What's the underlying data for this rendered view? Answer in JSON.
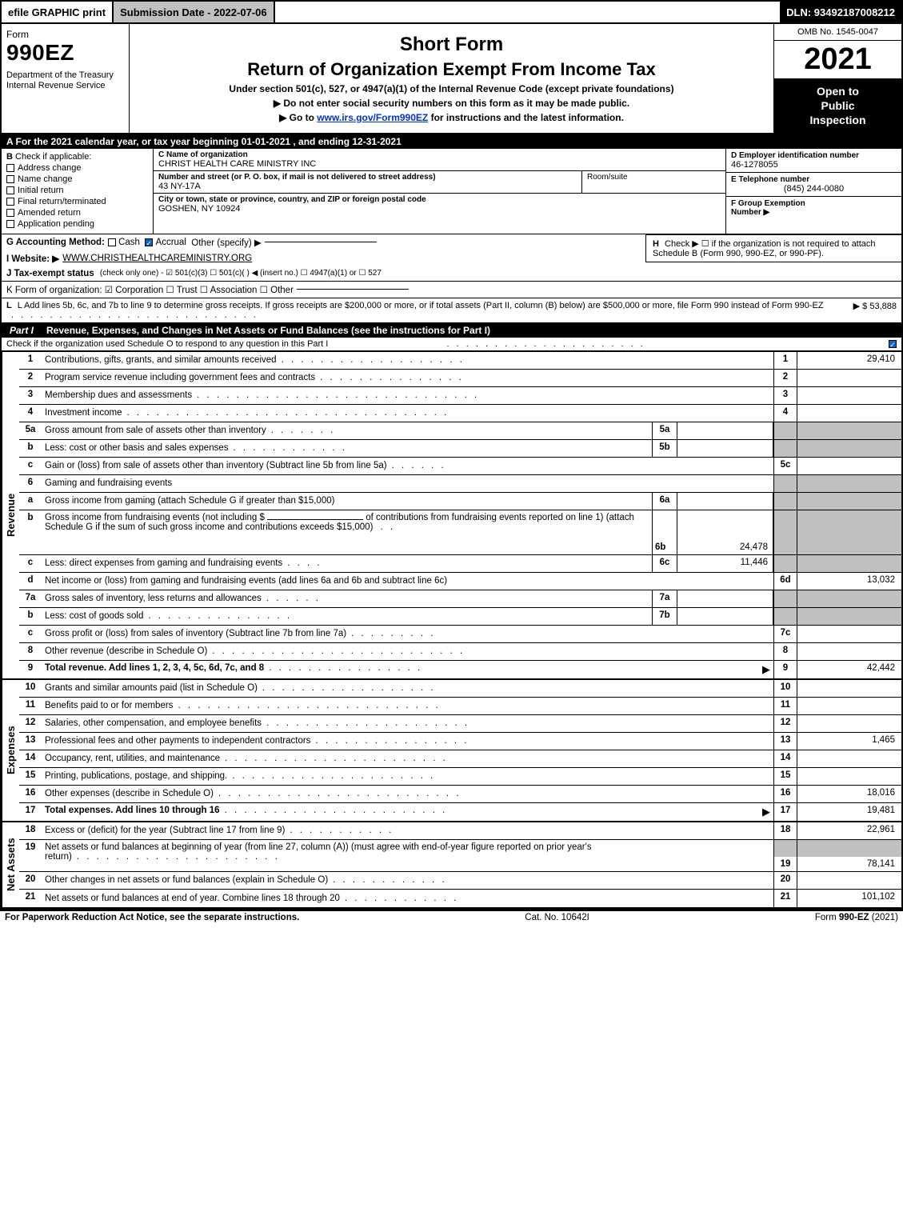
{
  "topbar": {
    "efile": "efile GRAPHIC print",
    "submission": "Submission Date - 2022-07-06",
    "dln": "DLN: 93492187008212"
  },
  "header": {
    "form_word": "Form",
    "form_number": "990EZ",
    "department": "Department of the Treasury\nInternal Revenue Service",
    "short_form": "Short Form",
    "return_title": "Return of Organization Exempt From Income Tax",
    "under_section": "Under section 501(c), 527, or 4947(a)(1) of the Internal Revenue Code (except private foundations)",
    "do_not_enter": "▶ Do not enter social security numbers on this form as it may be made public.",
    "go_to_prefix": "▶ Go to ",
    "go_to_link": "www.irs.gov/Form990EZ",
    "go_to_suffix": " for instructions and the latest information.",
    "omb": "OMB No. 1545-0047",
    "year": "2021",
    "inspection": "Open to\nPublic\nInspection"
  },
  "line_a": "A  For the 2021 calendar year, or tax year beginning 01-01-2021 , and ending 12-31-2021",
  "section_b": {
    "label": "B",
    "check_if": "Check if applicable:",
    "options": [
      "Address change",
      "Name change",
      "Initial return",
      "Final return/terminated",
      "Amended return",
      "Application pending"
    ]
  },
  "section_c": {
    "name_label": "C Name of organization",
    "name_value": "CHRIST HEALTH CARE MINISTRY INC",
    "street_label": "Number and street (or P. O. box, if mail is not delivered to street address)",
    "street_value": "43 NY-17A",
    "room_label": "Room/suite",
    "city_label": "City or town, state or province, country, and ZIP or foreign postal code",
    "city_value": "GOSHEN, NY  10924"
  },
  "section_d": {
    "label": "D Employer identification number",
    "value": "46-1278055"
  },
  "section_e": {
    "label": "E Telephone number",
    "value": "(845) 244-0080"
  },
  "section_f": {
    "label": "F Group Exemption\nNumber  ▶"
  },
  "line_g": {
    "label": "G Accounting Method:",
    "cash": "Cash",
    "accrual": "Accrual",
    "other": "Other (specify) ▶"
  },
  "line_h": {
    "label": "H",
    "text": "Check ▶ ☐ if the organization is not required to attach Schedule B (Form 990, 990-EZ, or 990-PF)."
  },
  "line_i": {
    "label": "I Website: ▶",
    "value": "WWW.CHRISTHEALTHCAREMINISTRY.ORG"
  },
  "line_j": {
    "label": "J Tax-exempt status",
    "text": "(check only one) - ☑ 501(c)(3) ☐ 501(c)( ) ◀ (insert no.) ☐ 4947(a)(1) or ☐ 527"
  },
  "line_k_label": "K Form of organization:   ☑ Corporation  ☐ Trust  ☐ Association  ☐ Other",
  "line_l": {
    "text": "L Add lines 5b, 6c, and 7b to line 9 to determine gross receipts. If gross receipts are $200,000 or more, or if total assets (Part II, column (B) below) are $500,000 or more, file Form 990 instead of Form 990-EZ",
    "amount": "▶ $ 53,888"
  },
  "part1": {
    "label": "Part I",
    "title": "Revenue, Expenses, and Changes in Net Assets or Fund Balances (see the instructions for Part I)",
    "sub": "Check if the organization used Schedule O to respond to any question in this Part I"
  },
  "side_tabs": {
    "revenue": "Revenue",
    "expenses": "Expenses",
    "net_assets": "Net Assets"
  },
  "rows": {
    "r1": {
      "num": "1",
      "desc": "Contributions, gifts, grants, and similar amounts received",
      "right_num": "1",
      "right_val": "29,410"
    },
    "r2": {
      "num": "2",
      "desc": "Program service revenue including government fees and contracts",
      "right_num": "2",
      "right_val": ""
    },
    "r3": {
      "num": "3",
      "desc": "Membership dues and assessments",
      "right_num": "3",
      "right_val": ""
    },
    "r4": {
      "num": "4",
      "desc": "Investment income",
      "right_num": "4",
      "right_val": ""
    },
    "r5a": {
      "num": "5a",
      "desc": "Gross amount from sale of assets other than inventory",
      "sub_num": "5a",
      "sub_val": ""
    },
    "r5b": {
      "num": "b",
      "desc": "Less: cost or other basis and sales expenses",
      "sub_num": "5b",
      "sub_val": ""
    },
    "r5c": {
      "num": "c",
      "desc": "Gain or (loss) from sale of assets other than inventory (Subtract line 5b from line 5a)",
      "right_num": "5c",
      "right_val": ""
    },
    "r6": {
      "num": "6",
      "desc": "Gaming and fundraising events"
    },
    "r6a": {
      "num": "a",
      "desc": "Gross income from gaming (attach Schedule G if greater than $15,000)",
      "sub_num": "6a",
      "sub_val": ""
    },
    "r6b": {
      "num": "b",
      "desc1": "Gross income from fundraising events (not including $",
      "desc2": "of contributions from fundraising events reported on line 1) (attach Schedule G if the sum of such gross income and contributions exceeds $15,000)",
      "sub_num": "6b",
      "sub_val": "24,478"
    },
    "r6c": {
      "num": "c",
      "desc": "Less: direct expenses from gaming and fundraising events",
      "sub_num": "6c",
      "sub_val": "11,446"
    },
    "r6d": {
      "num": "d",
      "desc": "Net income or (loss) from gaming and fundraising events (add lines 6a and 6b and subtract line 6c)",
      "right_num": "6d",
      "right_val": "13,032"
    },
    "r7a": {
      "num": "7a",
      "desc": "Gross sales of inventory, less returns and allowances",
      "sub_num": "7a",
      "sub_val": ""
    },
    "r7b": {
      "num": "b",
      "desc": "Less: cost of goods sold",
      "sub_num": "7b",
      "sub_val": ""
    },
    "r7c": {
      "num": "c",
      "desc": "Gross profit or (loss) from sales of inventory (Subtract line 7b from line 7a)",
      "right_num": "7c",
      "right_val": ""
    },
    "r8": {
      "num": "8",
      "desc": "Other revenue (describe in Schedule O)",
      "right_num": "8",
      "right_val": ""
    },
    "r9": {
      "num": "9",
      "desc": "Total revenue. Add lines 1, 2, 3, 4, 5c, 6d, 7c, and 8",
      "right_num": "9",
      "right_val": "42,442",
      "arrow": "▶"
    },
    "r10": {
      "num": "10",
      "desc": "Grants and similar amounts paid (list in Schedule O)",
      "right_num": "10",
      "right_val": ""
    },
    "r11": {
      "num": "11",
      "desc": "Benefits paid to or for members",
      "right_num": "11",
      "right_val": ""
    },
    "r12": {
      "num": "12",
      "desc": "Salaries, other compensation, and employee benefits",
      "right_num": "12",
      "right_val": ""
    },
    "r13": {
      "num": "13",
      "desc": "Professional fees and other payments to independent contractors",
      "right_num": "13",
      "right_val": "1,465"
    },
    "r14": {
      "num": "14",
      "desc": "Occupancy, rent, utilities, and maintenance",
      "right_num": "14",
      "right_val": ""
    },
    "r15": {
      "num": "15",
      "desc": "Printing, publications, postage, and shipping.",
      "right_num": "15",
      "right_val": ""
    },
    "r16": {
      "num": "16",
      "desc": "Other expenses (describe in Schedule O)",
      "right_num": "16",
      "right_val": "18,016"
    },
    "r17": {
      "num": "17",
      "desc": "Total expenses. Add lines 10 through 16",
      "right_num": "17",
      "right_val": "19,481",
      "arrow": "▶"
    },
    "r18": {
      "num": "18",
      "desc": "Excess or (deficit) for the year (Subtract line 17 from line 9)",
      "right_num": "18",
      "right_val": "22,961"
    },
    "r19": {
      "num": "19",
      "desc": "Net assets or fund balances at beginning of year (from line 27, column (A)) (must agree with end-of-year figure reported on prior year's return)",
      "right_num": "19",
      "right_val": "78,141"
    },
    "r20": {
      "num": "20",
      "desc": "Other changes in net assets or fund balances (explain in Schedule O)",
      "right_num": "20",
      "right_val": ""
    },
    "r21": {
      "num": "21",
      "desc": "Net assets or fund balances at end of year. Combine lines 18 through 20",
      "right_num": "21",
      "right_val": "101,102"
    }
  },
  "footer": {
    "left": "For Paperwork Reduction Act Notice, see the separate instructions.",
    "center": "Cat. No. 10642I",
    "right": "Form 990-EZ (2021)"
  },
  "colors": {
    "black": "#000000",
    "white": "#ffffff",
    "gray": "#c0c0c0",
    "link": "#0033cc",
    "check_blue": "#0066cc"
  }
}
